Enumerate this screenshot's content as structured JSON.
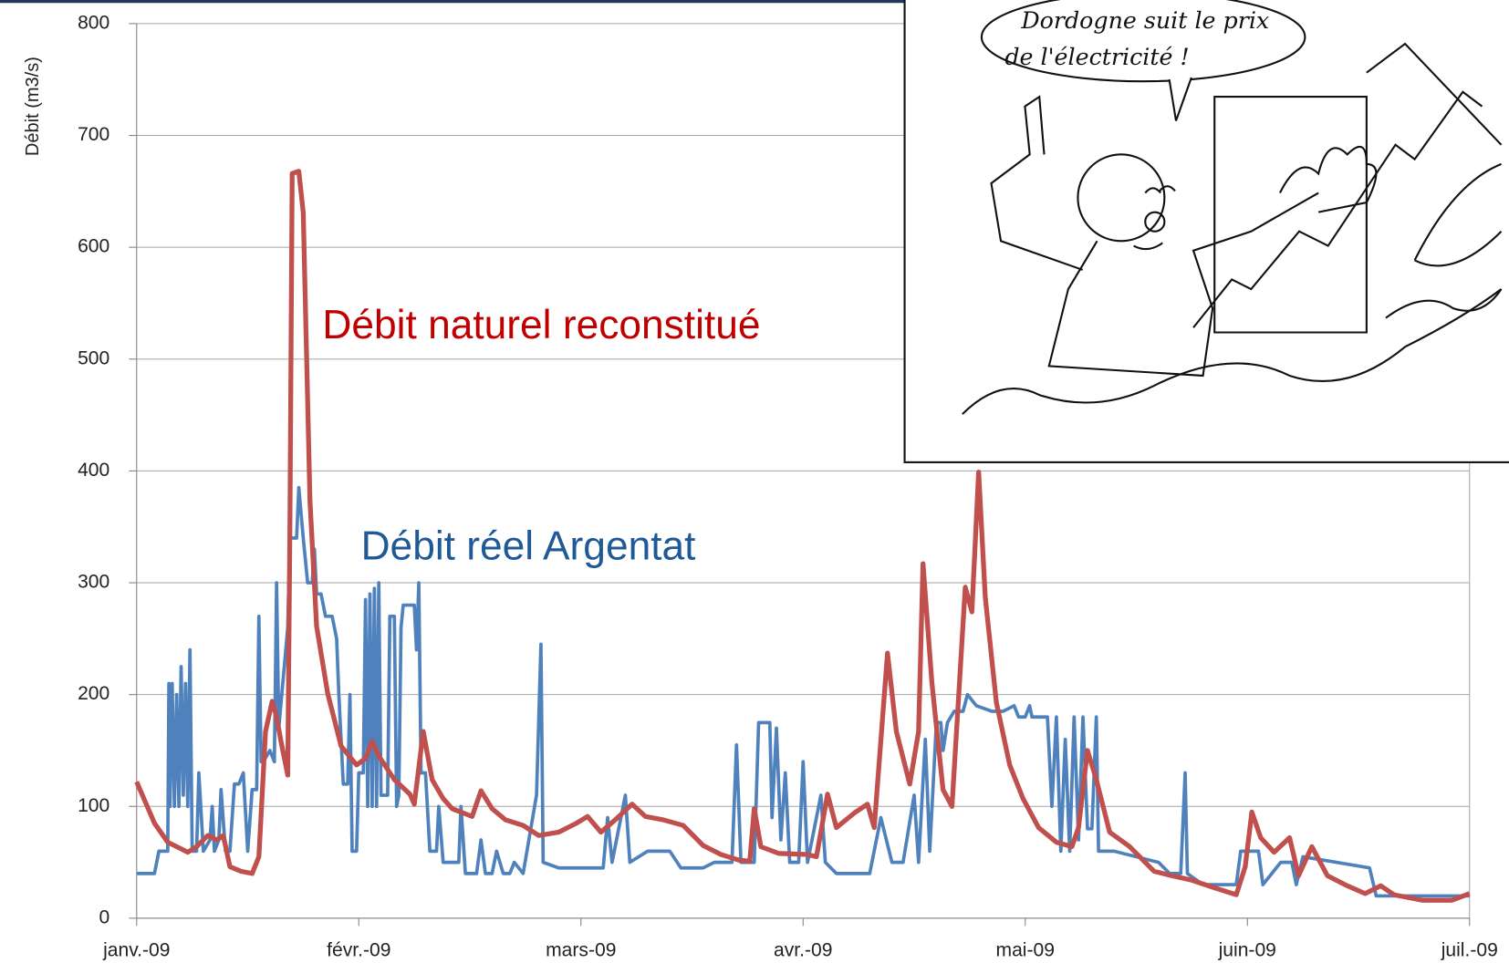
{
  "chart_data": {
    "type": "line",
    "y_label": "Débit (m3/s)",
    "xlim": [
      0,
      6
    ],
    "xticks": [
      {
        "value": 0,
        "label": "janv.-09"
      },
      {
        "value": 1,
        "label": "févr.-09"
      },
      {
        "value": 2,
        "label": "mars-09"
      },
      {
        "value": 3,
        "label": "avr.-09"
      },
      {
        "value": 4,
        "label": "mai-09"
      },
      {
        "value": 5,
        "label": "juin-09"
      },
      {
        "value": 6,
        "label": "juil.-09"
      }
    ],
    "ylim": [
      0,
      800
    ],
    "yticks": [
      0,
      100,
      200,
      300,
      400,
      500,
      600,
      700,
      800
    ],
    "grid": true,
    "annotations": [
      {
        "text": "Débit naturel reconstitué",
        "color": "#c00000"
      },
      {
        "text": "Débit réel Argentat",
        "color": "#1f5a96"
      }
    ],
    "inset_text": [
      "Dordogne suit le prix",
      "de l'électricité !"
    ],
    "series": [
      {
        "color": "#4f81bd",
        "x": [
          0,
          0.08,
          0.1,
          0.14,
          0.145,
          0.15,
          0.16,
          0.17,
          0.18,
          0.19,
          0.2,
          0.21,
          0.22,
          0.23,
          0.24,
          0.25,
          0.27,
          0.28,
          0.3,
          0.33,
          0.34,
          0.35,
          0.37,
          0.38,
          0.4,
          0.42,
          0.44,
          0.46,
          0.48,
          0.5,
          0.52,
          0.54,
          0.55,
          0.56,
          0.57,
          0.6,
          0.62,
          0.63,
          0.64,
          0.68,
          0.69,
          0.72,
          0.73,
          0.75,
          0.77,
          0.79,
          0.8,
          0.81,
          0.83,
          0.85,
          0.88,
          0.9,
          0.91,
          0.93,
          0.95,
          0.96,
          0.97,
          0.99,
          1.0,
          1.02,
          1.03,
          1.04,
          1.05,
          1.06,
          1.07,
          1.08,
          1.09,
          1.1,
          1.13,
          1.14,
          1.16,
          1.17,
          1.18,
          1.19,
          1.2,
          1.25,
          1.26,
          1.27,
          1.28,
          1.3,
          1.32,
          1.35,
          1.36,
          1.38,
          1.45,
          1.46,
          1.48,
          1.53,
          1.55,
          1.57,
          1.6,
          1.62,
          1.65,
          1.68,
          1.7,
          1.74,
          1.8,
          1.82,
          1.83,
          1.9,
          2.0,
          2.1,
          2.12,
          2.14,
          2.2,
          2.22,
          2.3,
          2.4,
          2.45,
          2.55,
          2.6,
          2.68,
          2.7,
          2.72,
          2.78,
          2.8,
          2.85,
          2.86,
          2.88,
          2.9,
          2.92,
          2.94,
          2.98,
          3.0,
          3.02,
          3.08,
          3.1,
          3.15,
          3.3,
          3.35,
          3.4,
          3.45,
          3.5,
          3.52,
          3.55,
          3.57,
          3.6,
          3.62,
          3.63,
          3.65,
          3.68,
          3.72,
          3.74,
          3.78,
          3.85,
          3.9,
          3.95,
          3.97,
          4.0,
          4.02,
          4.03,
          4.1,
          4.12,
          4.14,
          4.16,
          4.18,
          4.2,
          4.22,
          4.24,
          4.26,
          4.28,
          4.3,
          4.32,
          4.33,
          4.4,
          4.6,
          4.65,
          4.7,
          4.72,
          4.73,
          4.8,
          4.9,
          4.95,
          4.97,
          5.05,
          5.07,
          5.15,
          5.2,
          5.22,
          5.25,
          5.4,
          5.55,
          5.58,
          5.6,
          5.8,
          6.0
        ],
        "values": [
          40,
          40,
          60,
          60,
          210,
          100,
          210,
          100,
          200,
          100,
          225,
          110,
          210,
          100,
          240,
          60,
          60,
          130,
          60,
          70,
          100,
          60,
          70,
          115,
          60,
          60,
          120,
          120,
          130,
          60,
          115,
          115,
          270,
          140,
          140,
          150,
          140,
          300,
          170,
          260,
          340,
          340,
          385,
          340,
          300,
          300,
          330,
          290,
          290,
          270,
          270,
          250,
          200,
          120,
          120,
          200,
          60,
          60,
          130,
          130,
          285,
          100,
          290,
          100,
          295,
          100,
          300,
          110,
          110,
          270,
          270,
          100,
          110,
          260,
          280,
          280,
          240,
          300,
          130,
          130,
          60,
          60,
          100,
          50,
          50,
          100,
          40,
          40,
          70,
          40,
          40,
          60,
          40,
          40,
          50,
          40,
          110,
          245,
          50,
          45,
          45,
          45,
          90,
          50,
          110,
          50,
          60,
          60,
          45,
          45,
          50,
          50,
          155,
          50,
          50,
          175,
          175,
          90,
          170,
          70,
          130,
          50,
          50,
          140,
          50,
          110,
          50,
          40,
          40,
          90,
          50,
          50,
          110,
          50,
          160,
          60,
          175,
          175,
          150,
          175,
          185,
          185,
          200,
          190,
          185,
          185,
          190,
          180,
          180,
          190,
          180,
          180,
          100,
          180,
          60,
          160,
          60,
          180,
          70,
          180,
          80,
          80,
          180,
          60,
          60,
          50,
          40,
          40,
          130,
          40,
          30,
          30,
          30,
          60,
          60,
          30,
          50,
          50,
          30,
          55,
          50,
          45,
          20,
          20,
          20,
          20
        ]
      },
      {
        "color": "#c0504d",
        "x": [
          0,
          0.08,
          0.14,
          0.23,
          0.27,
          0.32,
          0.36,
          0.39,
          0.42,
          0.47,
          0.52,
          0.55,
          0.58,
          0.61,
          0.63,
          0.65,
          0.68,
          0.69,
          0.7,
          0.73,
          0.75,
          0.78,
          0.81,
          0.86,
          0.92,
          0.99,
          1.03,
          1.06,
          1.09,
          1.16,
          1.23,
          1.25,
          1.29,
          1.33,
          1.38,
          1.42,
          1.51,
          1.55,
          1.6,
          1.66,
          1.74,
          1.81,
          1.9,
          1.98,
          2.03,
          2.09,
          2.16,
          2.23,
          2.29,
          2.37,
          2.46,
          2.55,
          2.63,
          2.71,
          2.76,
          2.78,
          2.81,
          2.89,
          3.02,
          3.06,
          3.11,
          3.15,
          3.23,
          3.29,
          3.32,
          3.38,
          3.42,
          3.48,
          3.52,
          3.54,
          3.58,
          3.63,
          3.67,
          3.73,
          3.76,
          3.79,
          3.82,
          3.87,
          3.93,
          3.99,
          4.06,
          4.14,
          4.21,
          4.24,
          4.28,
          4.32,
          4.38,
          4.47,
          4.58,
          4.66,
          4.75,
          4.84,
          4.95,
          4.99,
          5.02,
          5.06,
          5.12,
          5.19,
          5.23,
          5.29,
          5.36,
          5.45,
          5.53,
          5.6,
          5.66,
          5.79,
          5.92,
          6.0
        ],
        "values": [
          122,
          85,
          68,
          59,
          64,
          74,
          70,
          74,
          46,
          42,
          40,
          55,
          167,
          194,
          180,
          158,
          128,
          356,
          666,
          668,
          631,
          373,
          261,
          201,
          154,
          137,
          143,
          158,
          145,
          124,
          111,
          102,
          167,
          124,
          107,
          98,
          91,
          114,
          98,
          88,
          83,
          74,
          77,
          85,
          91,
          77,
          89,
          102,
          91,
          88,
          83,
          65,
          57,
          52,
          51,
          98,
          64,
          58,
          57,
          55,
          111,
          81,
          94,
          102,
          81,
          237,
          167,
          120,
          167,
          317,
          210,
          115,
          100,
          296,
          274,
          399,
          287,
          193,
          137,
          107,
          81,
          68,
          64,
          81,
          150,
          124,
          77,
          64,
          42,
          38,
          34,
          28,
          21,
          46,
          95,
          72,
          59,
          72,
          38,
          64,
          38,
          29,
          22,
          29,
          21,
          16,
          16,
          22
        ]
      }
    ]
  }
}
